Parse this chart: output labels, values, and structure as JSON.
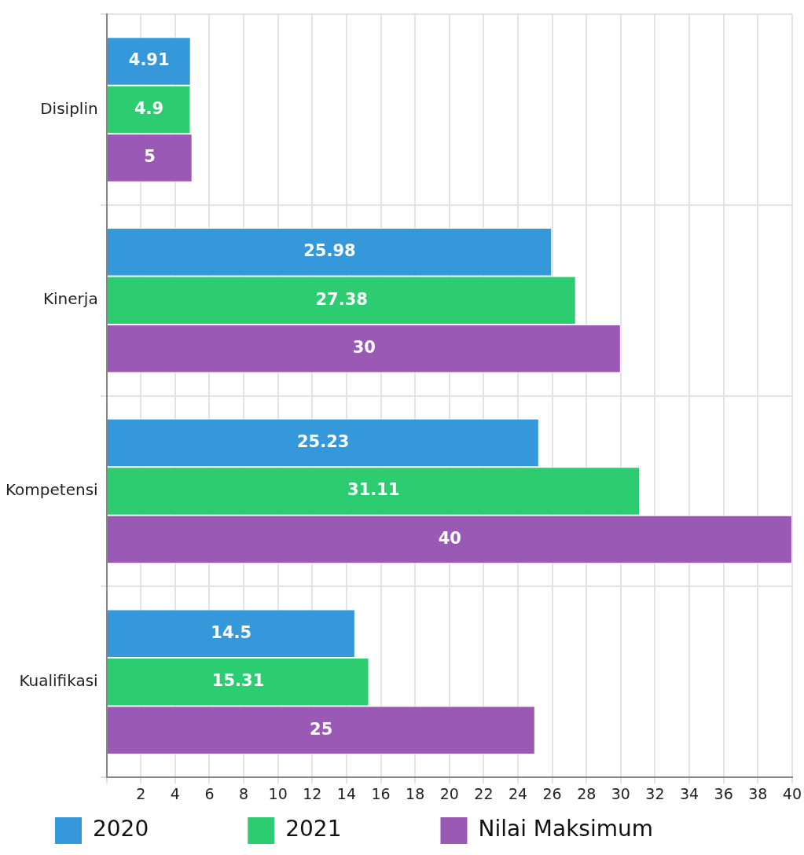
{
  "chart_data": {
    "type": "bar",
    "orientation": "horizontal",
    "categories": [
      "Disiplin",
      "Kinerja",
      "Kompetensi",
      "Kualifikasi"
    ],
    "series": [
      {
        "name": "2020",
        "color": "#3498db",
        "values": [
          4.91,
          25.98,
          25.23,
          14.5
        ]
      },
      {
        "name": "2021",
        "color": "#2ecc71",
        "values": [
          4.9,
          27.38,
          31.11,
          15.31
        ]
      },
      {
        "name": "Nilai Maksimum",
        "color": "#9b59b6",
        "values": [
          5,
          30,
          40,
          25
        ]
      }
    ],
    "xlim": [
      0,
      40
    ],
    "xticks": [
      {
        "value": 0,
        "label": null
      },
      2,
      4,
      6,
      8,
      10,
      12,
      14,
      16,
      18,
      20,
      22,
      24,
      26,
      28,
      30,
      32,
      34,
      36,
      38,
      40
    ],
    "grid": true,
    "legend": "bottom",
    "data_labels": true
  }
}
